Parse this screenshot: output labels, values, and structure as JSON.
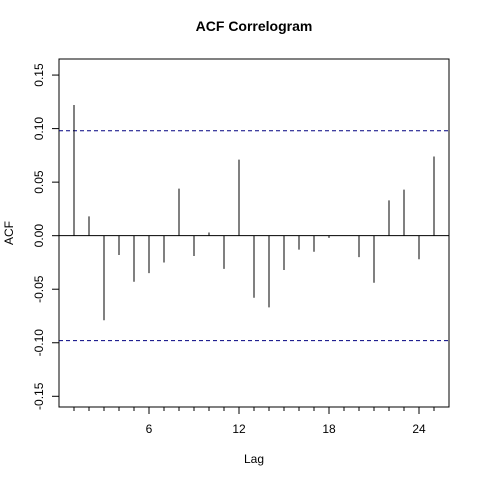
{
  "chart_data": {
    "type": "bar",
    "title": "ACF Correlogram",
    "xlabel": "Lag",
    "ylabel": "ACF",
    "xlim": [
      0,
      26
    ],
    "ylim": [
      -0.16,
      0.165
    ],
    "x_ticks": [
      6,
      12,
      18,
      24
    ],
    "x_tick_labels": [
      "6",
      "12",
      "18",
      "24"
    ],
    "x_minor_ticks": [
      1,
      2,
      3,
      4,
      5,
      6,
      7,
      8,
      9,
      10,
      11,
      12,
      13,
      14,
      15,
      16,
      17,
      18,
      19,
      20,
      21,
      22,
      23,
      24,
      25
    ],
    "y_ticks": [
      -0.15,
      -0.1,
      -0.05,
      0.0,
      0.05,
      0.1,
      0.15
    ],
    "y_tick_labels": [
      "-0.15",
      "-0.10",
      "-0.05",
      "0.00",
      "0.05",
      "0.10",
      "0.15"
    ],
    "lags": [
      1,
      2,
      3,
      4,
      5,
      6,
      7,
      8,
      9,
      10,
      11,
      12,
      13,
      14,
      15,
      16,
      17,
      18,
      19,
      20,
      21,
      22,
      23,
      24,
      25
    ],
    "values": [
      0.122,
      0.018,
      -0.079,
      -0.018,
      -0.043,
      -0.035,
      -0.025,
      0.044,
      -0.019,
      0.003,
      -0.031,
      0.071,
      -0.058,
      -0.067,
      -0.032,
      -0.013,
      -0.015,
      -0.002,
      0.0,
      -0.02,
      -0.044,
      0.033,
      0.043,
      -0.022,
      0.074
    ],
    "confidence_bounds": [
      0.098,
      -0.098
    ],
    "grid": false,
    "legend": "none",
    "colors": {
      "bars": "#000000",
      "bounds": "#000080",
      "zero_line": "#000000"
    }
  }
}
